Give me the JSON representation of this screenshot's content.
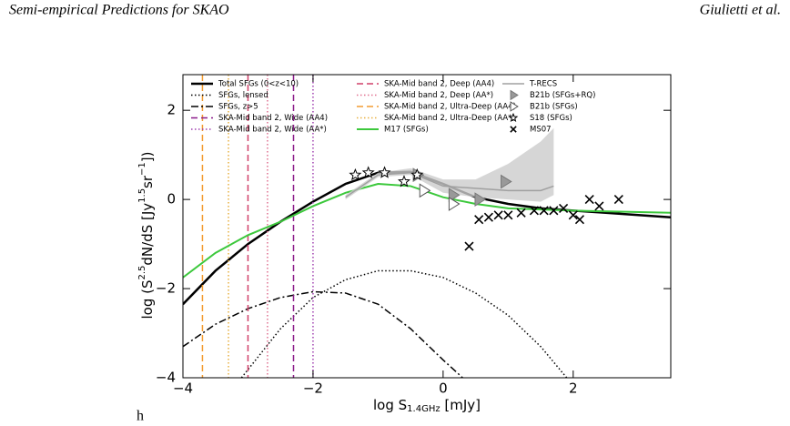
{
  "header": {
    "left": "Semi-empirical Predictions for SKAO",
    "right": "Giulietti et al."
  },
  "footer_mark": "h",
  "chart_data": {
    "type": "line",
    "xlabel_parts": [
      "log S",
      "1.4GHz",
      " [mJy]"
    ],
    "ylabel_parts": [
      "log (S",
      "2.5",
      "dN/dS [Jy",
      "1.5",
      "sr",
      "−1",
      "])"
    ],
    "xlim": [
      -4,
      3.5
    ],
    "ylim": [
      -4,
      2.8
    ],
    "xticks": [
      {
        "value": -4,
        "label": "−4"
      },
      {
        "value": -2,
        "label": "−2"
      },
      0,
      2
    ],
    "yticks": [
      {
        "value": -4,
        "label": "−4"
      },
      {
        "value": -2,
        "label": "−2"
      },
      0,
      2
    ],
    "series": [
      {
        "name": "Total SFGs (0<z<10)",
        "kind": "line",
        "color": "#000000",
        "dash": "solid",
        "width": 2.5,
        "x": [
          -4,
          -3.5,
          -3,
          -2.5,
          -2,
          -1.5,
          -1,
          -0.5,
          0,
          0.5,
          1,
          1.5,
          2,
          2.5,
          3,
          3.5
        ],
        "values": [
          -2.35,
          -1.6,
          -1.0,
          -0.5,
          -0.05,
          0.35,
          0.6,
          0.62,
          0.35,
          0.05,
          -0.1,
          -0.2,
          -0.25,
          -0.3,
          -0.35,
          -0.4
        ]
      },
      {
        "name": "SFGs, lensed",
        "kind": "line",
        "color": "#000000",
        "dash": "dotted",
        "width": 1.5,
        "x": [
          -3.1,
          -2.5,
          -2,
          -1.5,
          -1,
          -0.5,
          0,
          0.5,
          1,
          1.5,
          1.9
        ],
        "values": [
          -4,
          -2.9,
          -2.2,
          -1.8,
          -1.6,
          -1.6,
          -1.75,
          -2.1,
          -2.6,
          -3.3,
          -4
        ]
      },
      {
        "name": "SFGs, z>5",
        "kind": "line",
        "color": "#000000",
        "dash": "dashdot",
        "width": 1.5,
        "x": [
          -4,
          -3.5,
          -3,
          -2.5,
          -2,
          -1.5,
          -1,
          -0.5,
          0,
          0.3
        ],
        "values": [
          -3.3,
          -2.8,
          -2.45,
          -2.2,
          -2.07,
          -2.1,
          -2.35,
          -2.9,
          -3.6,
          -4
        ]
      },
      {
        "name": "SKA-Mid band 2, Wide (AA4)",
        "kind": "vline",
        "color": "#8b1a89",
        "dash": "dashed",
        "width": 1.5,
        "x": [
          -2.3
        ]
      },
      {
        "name": "SKA-Mid band 2, Wide (AA*)",
        "kind": "vline",
        "color": "#a040b0",
        "dash": "dotted",
        "width": 1.5,
        "x": [
          -2.0
        ]
      },
      {
        "name": "SKA-Mid band 2, Deep (AA4)",
        "kind": "vline",
        "color": "#d0406a",
        "dash": "dashed",
        "width": 1.5,
        "x": [
          -3.0
        ]
      },
      {
        "name": "SKA-Mid band 2, Deep (AA*)",
        "kind": "vline",
        "color": "#e07090",
        "dash": "dotted",
        "width": 1.5,
        "x": [
          -2.7
        ]
      },
      {
        "name": "SKA-Mid band 2, Ultra-Deep (AA4)",
        "kind": "vline",
        "color": "#f39c30",
        "dash": "dashed",
        "width": 1.5,
        "x": [
          -3.7
        ]
      },
      {
        "name": "SKA-Mid band 2, Ultra-Deep (AA*)",
        "kind": "vline",
        "color": "#e8b040",
        "dash": "dotted",
        "width": 1.5,
        "x": [
          -3.3
        ]
      },
      {
        "name": "M17 (SFGs)",
        "kind": "line",
        "color": "#3cc83c",
        "dash": "solid",
        "width": 2,
        "x": [
          -4,
          -3.5,
          -3,
          -2.5,
          -2,
          -1.5,
          -1,
          -0.5,
          0,
          0.5,
          1,
          2,
          3.5
        ],
        "values": [
          -1.75,
          -1.2,
          -0.8,
          -0.5,
          -0.15,
          0.15,
          0.35,
          0.3,
          0.05,
          -0.1,
          -0.2,
          -0.25,
          -0.3
        ]
      },
      {
        "name": "T-RECS",
        "kind": "band",
        "color": "#a0a0a0",
        "dash": "solid",
        "width": 1.5,
        "x": [
          -1.5,
          -1,
          -0.5,
          0,
          0.5,
          1,
          1.5,
          1.7
        ],
        "values": [
          0.05,
          0.55,
          0.6,
          0.3,
          0.25,
          0.2,
          0.2,
          0.3
        ],
        "lower": [
          0,
          0.5,
          0.55,
          0.15,
          0.05,
          0.0,
          -0.05,
          0.1
        ],
        "upper": [
          0.1,
          0.6,
          0.7,
          0.45,
          0.45,
          0.8,
          1.3,
          1.6
        ]
      },
      {
        "name": "B21b (SFGs+RQ)",
        "kind": "scatter",
        "marker": "triangle",
        "color": "#999999",
        "x": [
          -0.4,
          0.15,
          0.55,
          0.95
        ],
        "values": [
          0.55,
          0.1,
          0.0,
          0.4
        ]
      },
      {
        "name": "B21b (SFGs)",
        "kind": "scatter",
        "marker": "triangle",
        "color": "#ffffff",
        "x": [
          -0.3,
          0.15
        ],
        "values": [
          0.2,
          -0.1
        ]
      },
      {
        "name": "S18 (SFGs)",
        "kind": "scatter",
        "marker": "star",
        "color": "#ffffff",
        "x": [
          -1.35,
          -1.15,
          -0.9,
          -0.6,
          -0.4
        ],
        "values": [
          0.55,
          0.6,
          0.6,
          0.4,
          0.55
        ]
      },
      {
        "name": "MS07",
        "kind": "scatter",
        "marker": "cross",
        "color": "#000000",
        "x": [
          0.4,
          0.55,
          0.7,
          0.85,
          1.0,
          1.2,
          1.4,
          1.55,
          1.7,
          1.85,
          2.0,
          2.1,
          2.25,
          2.4,
          2.7
        ],
        "values": [
          -1.05,
          -0.45,
          -0.4,
          -0.35,
          -0.35,
          -0.3,
          -0.25,
          -0.25,
          -0.25,
          -0.2,
          -0.35,
          -0.45,
          0.0,
          -0.15,
          0.0
        ]
      }
    ]
  }
}
